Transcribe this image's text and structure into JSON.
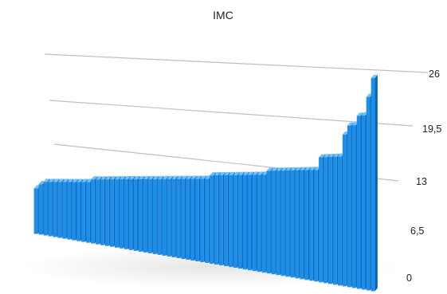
{
  "chart_data": {
    "type": "bar",
    "style": "3d-perspective",
    "title": "IMC",
    "xlabel": "",
    "ylabel": "",
    "ylim": [
      0,
      26
    ],
    "yticks": [
      "0",
      "6,5",
      "13",
      "19,5",
      "26"
    ],
    "grid": true,
    "legend": "none",
    "bar_color": "#1d8fe8",
    "values": [
      10.5,
      11.5,
      12,
      12,
      12,
      12,
      12,
      12,
      12,
      12,
      12,
      12,
      12.5,
      12.5,
      12.5,
      12.5,
      12.5,
      12.5,
      12.5,
      12.5,
      12.5,
      12.5,
      12.5,
      12.5,
      12.5,
      12.5,
      12.5,
      12.5,
      12.5,
      12.5,
      12.5,
      12.5,
      12.5,
      12.5,
      12.5,
      12.5,
      12.5,
      13,
      13,
      13,
      13,
      13,
      13,
      13,
      13,
      13,
      13,
      13,
      13,
      13.5,
      13.5,
      13.5,
      13.5,
      13.5,
      13.5,
      13.5,
      13.5,
      13.5,
      13.5,
      13.5,
      15,
      15,
      15,
      15,
      15,
      17.5,
      18.5,
      18.5,
      19.5,
      19.5,
      21.5,
      23.5
    ]
  }
}
